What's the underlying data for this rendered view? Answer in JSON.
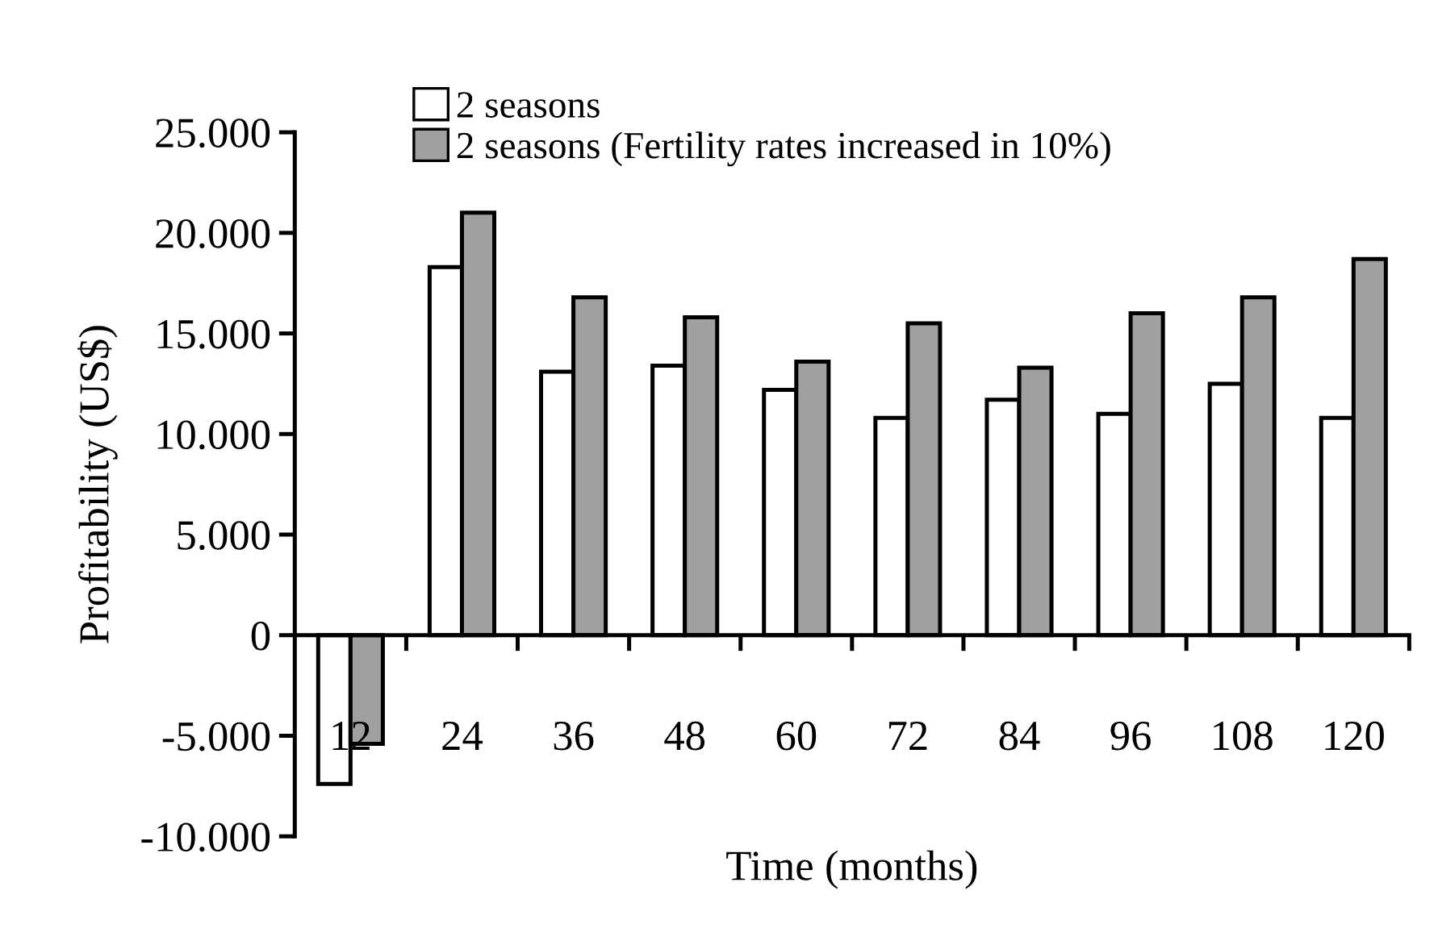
{
  "chart_data": {
    "type": "bar",
    "xlabel": "Time (months)",
    "ylabel": "Profitability (US$)",
    "categories": [
      "12",
      "24",
      "36",
      "48",
      "60",
      "72",
      "84",
      "96",
      "108",
      "120"
    ],
    "series": [
      {
        "name": "2 seasons",
        "color": "#ffffff",
        "values": [
          -7400,
          18300,
          13100,
          13400,
          12200,
          10800,
          11700,
          11000,
          12500,
          10800
        ]
      },
      {
        "name": "2 seasons (Fertility rates increased in 10%)",
        "color": "#a0a0a0",
        "values": [
          -5400,
          21000,
          16800,
          15800,
          13600,
          15500,
          13300,
          16000,
          16800,
          18700
        ]
      }
    ],
    "ylim": [
      -10000,
      25000
    ],
    "yticks": [
      {
        "value": -10000,
        "label": "-10.000"
      },
      {
        "value": -5000,
        "label": "-5.000"
      },
      0,
      {
        "value": 5000,
        "label": "5.000"
      },
      {
        "value": 10000,
        "label": "10.000"
      },
      {
        "value": 15000,
        "label": "15.000"
      },
      {
        "value": 20000,
        "label": "20.000"
      },
      {
        "value": 25000,
        "label": "25.000"
      }
    ],
    "grid": false,
    "legend": "top"
  }
}
